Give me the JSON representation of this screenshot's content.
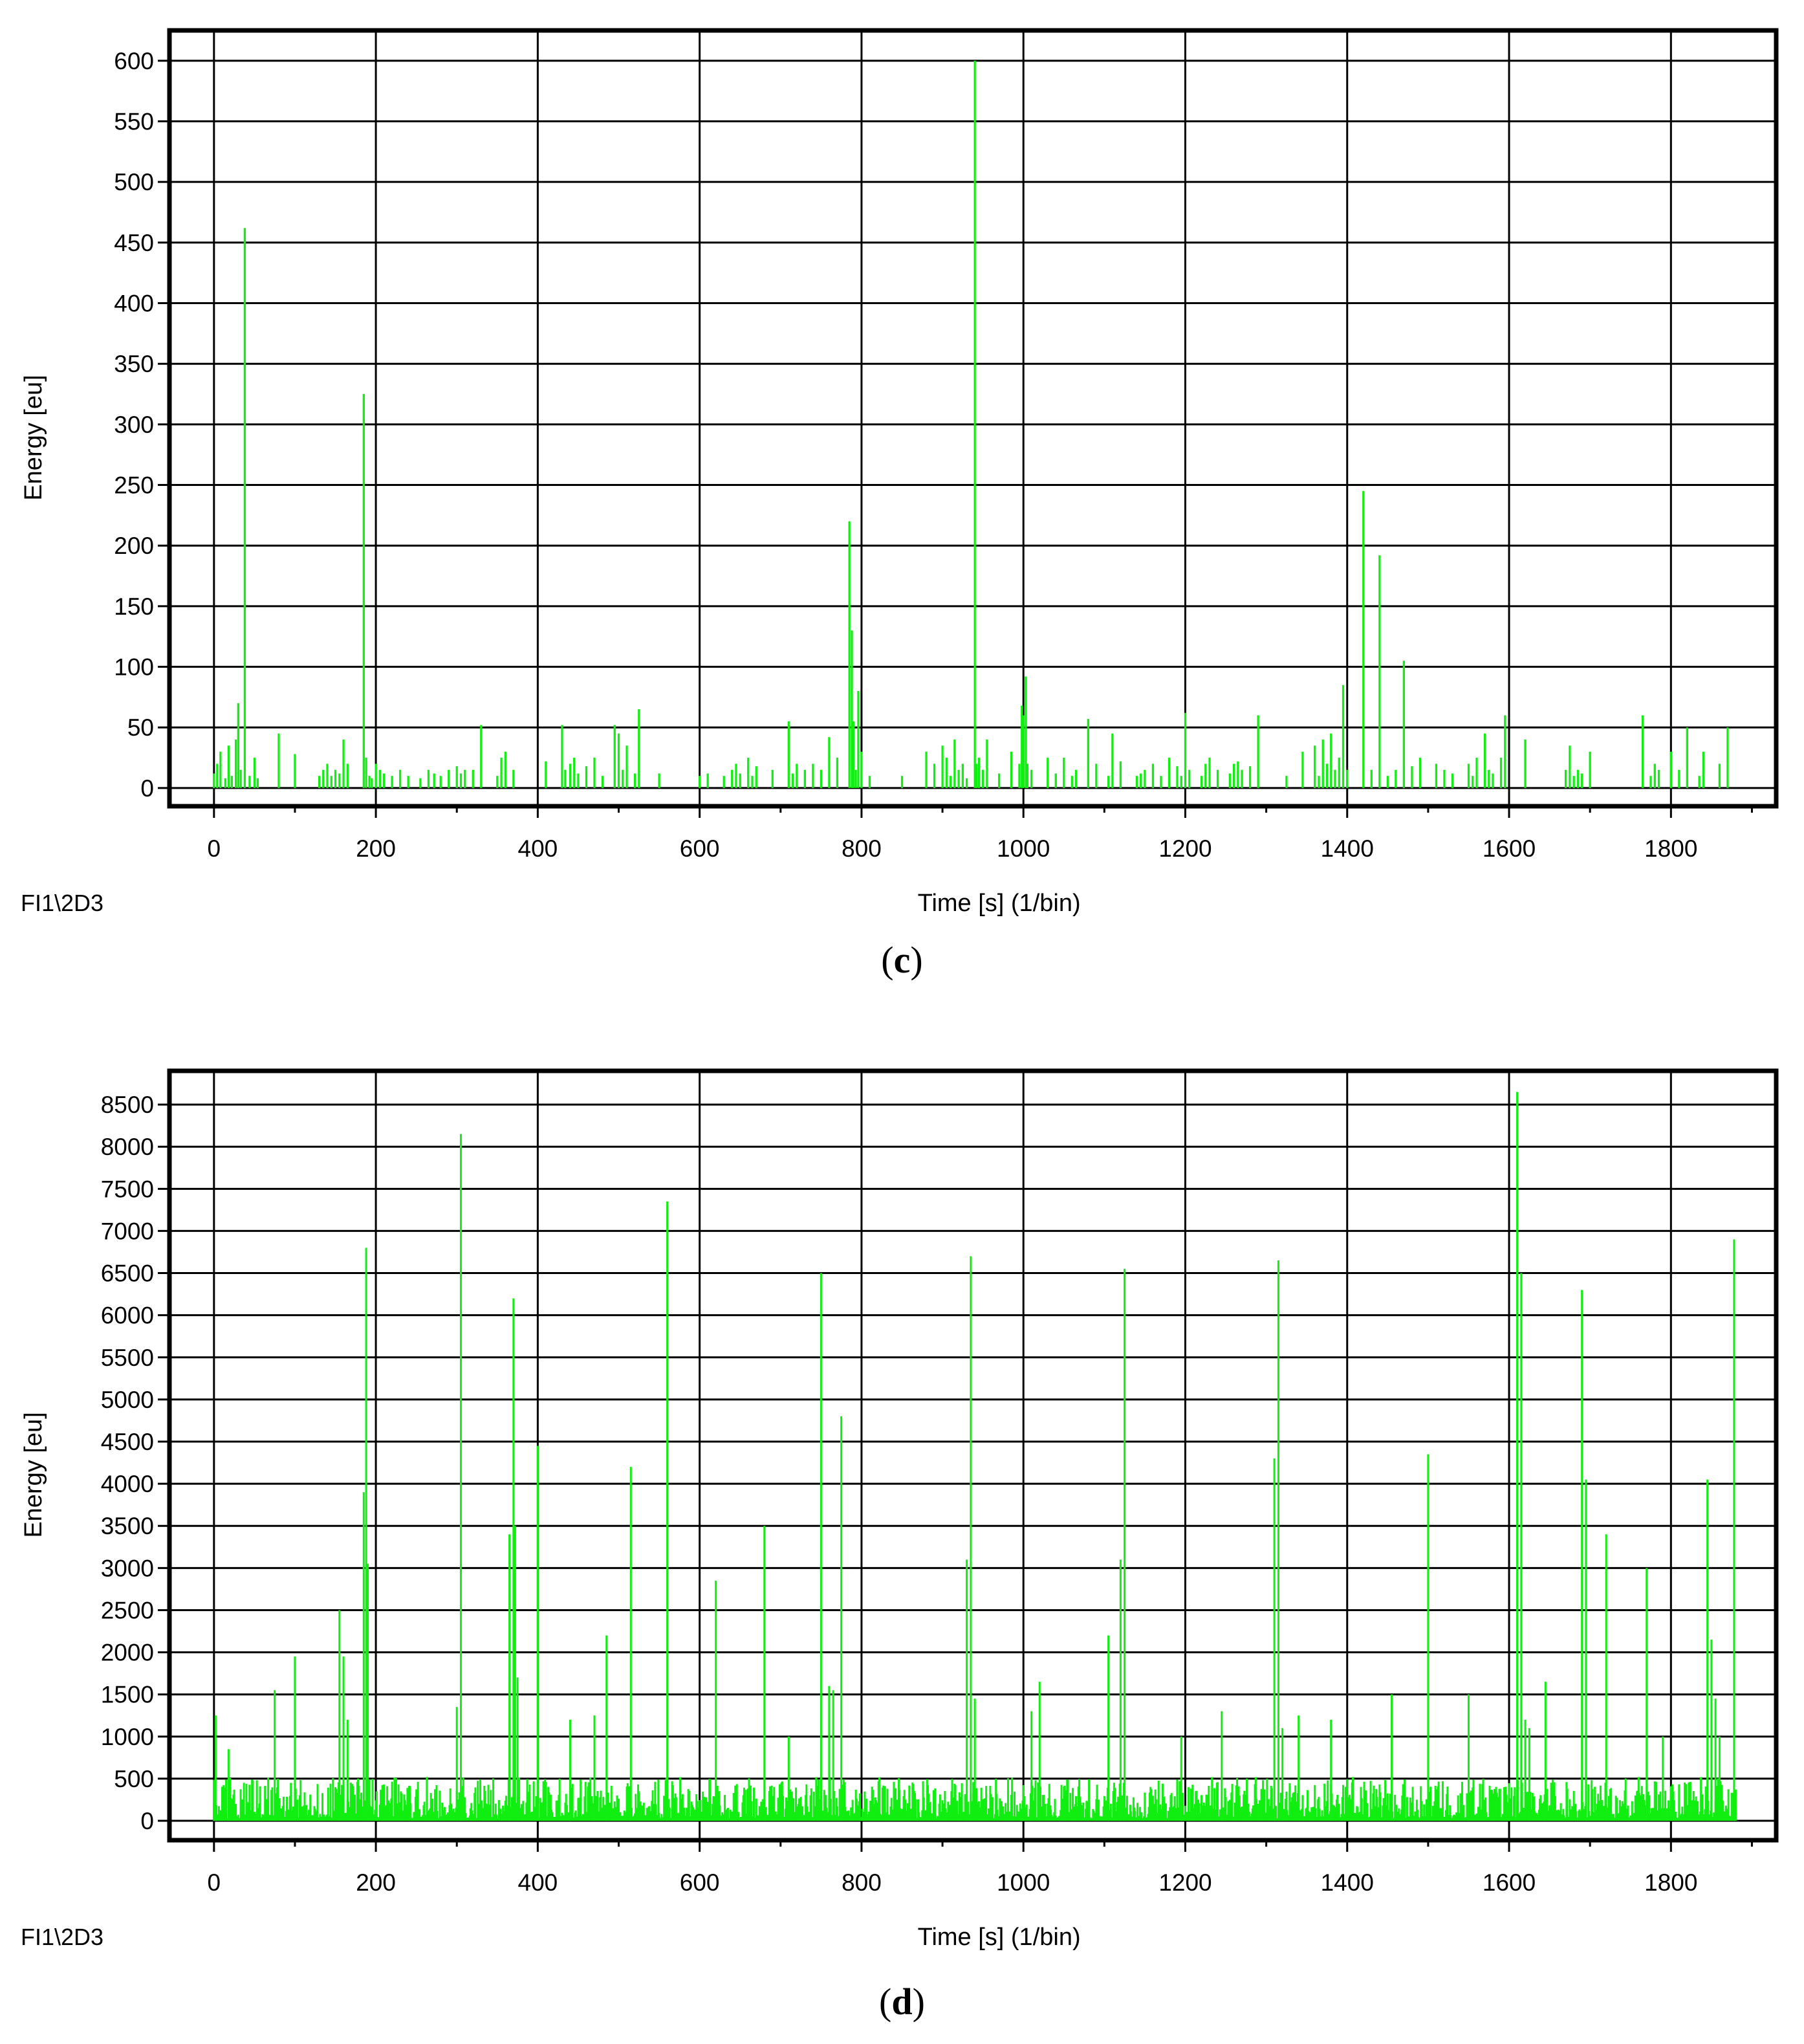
{
  "colors": {
    "bar": "#11ee11",
    "grid": "#000000",
    "frame": "#000000"
  },
  "chart_data": [
    {
      "type": "bar",
      "panel": "c",
      "caption_letter": "c",
      "source_label": "FI1\\2D3",
      "xlabel": "Time [s] (1/bin)",
      "ylabel": "Energy [eu]",
      "xlim": [
        -55,
        1930
      ],
      "ylim": [
        -15,
        625
      ],
      "x_ticks": [
        0,
        200,
        400,
        600,
        800,
        1000,
        1200,
        1400,
        1600,
        1800
      ],
      "y_ticks": [
        0,
        50,
        100,
        150,
        200,
        250,
        300,
        350,
        400,
        450,
        500,
        550,
        600
      ],
      "grid": true,
      "bar_width": 2.6,
      "x": [
        0,
        4,
        8,
        14,
        18,
        22,
        27,
        30,
        33,
        38,
        44,
        50,
        54,
        80,
        100,
        130,
        135,
        140,
        145,
        150,
        155,
        160,
        165,
        185,
        188,
        192,
        195,
        200,
        205,
        210,
        220,
        230,
        240,
        255,
        265,
        272,
        280,
        290,
        300,
        305,
        310,
        320,
        330,
        350,
        355,
        360,
        370,
        410,
        430,
        434,
        440,
        445,
        450,
        460,
        470,
        480,
        495,
        500,
        505,
        510,
        520,
        525,
        550,
        600,
        610,
        630,
        640,
        645,
        650,
        660,
        665,
        670,
        690,
        710,
        715,
        720,
        730,
        740,
        750,
        760,
        770,
        785,
        788,
        790,
        793,
        796,
        800,
        810,
        850,
        880,
        890,
        900,
        905,
        910,
        915,
        920,
        925,
        930,
        940,
        942,
        945,
        950,
        955,
        970,
        985,
        995,
        998,
        1000,
        1003,
        1005,
        1010,
        1030,
        1040,
        1050,
        1060,
        1065,
        1080,
        1090,
        1105,
        1110,
        1120,
        1140,
        1145,
        1150,
        1160,
        1170,
        1180,
        1190,
        1195,
        1200,
        1205,
        1220,
        1225,
        1230,
        1240,
        1255,
        1260,
        1265,
        1270,
        1280,
        1290,
        1325,
        1345,
        1360,
        1365,
        1370,
        1375,
        1380,
        1385,
        1390,
        1395,
        1400,
        1420,
        1430,
        1440,
        1450,
        1460,
        1470,
        1480,
        1490,
        1510,
        1520,
        1530,
        1550,
        1555,
        1560,
        1570,
        1575,
        1580,
        1590,
        1595,
        1620,
        1670,
        1675,
        1680,
        1685,
        1690,
        1700,
        1765,
        1775,
        1780,
        1785,
        1800,
        1810,
        1820,
        1835,
        1840,
        1860,
        1870
      ],
      "values": [
        12,
        20,
        30,
        8,
        35,
        10,
        40,
        70,
        15,
        462,
        10,
        25,
        8,
        45,
        28,
        10,
        15,
        20,
        10,
        15,
        12,
        40,
        20,
        325,
        25,
        10,
        8,
        20,
        15,
        12,
        10,
        15,
        10,
        8,
        15,
        12,
        10,
        15,
        18,
        12,
        15,
        15,
        52,
        10,
        25,
        30,
        15,
        22,
        52,
        15,
        20,
        25,
        12,
        18,
        25,
        10,
        52,
        45,
        15,
        35,
        12,
        65,
        12,
        10,
        12,
        10,
        15,
        20,
        12,
        25,
        10,
        18,
        15,
        55,
        12,
        20,
        15,
        20,
        15,
        42,
        25,
        220,
        130,
        55,
        15,
        80,
        30,
        10,
        10,
        30,
        20,
        35,
        25,
        10,
        40,
        15,
        20,
        8,
        600,
        20,
        25,
        15,
        40,
        12,
        30,
        20,
        68,
        60,
        92,
        20,
        15,
        25,
        12,
        25,
        10,
        15,
        57,
        20,
        10,
        45,
        22,
        10,
        12,
        15,
        20,
        10,
        25,
        18,
        10,
        62,
        15,
        10,
        20,
        25,
        15,
        12,
        20,
        22,
        15,
        18,
        60,
        10,
        30,
        35,
        10,
        40,
        20,
        45,
        15,
        25,
        85,
        15,
        245,
        15,
        192,
        10,
        15,
        105,
        18,
        25,
        20,
        15,
        12,
        20,
        10,
        25,
        45,
        15,
        12,
        25,
        60,
        40,
        15,
        35,
        10,
        15,
        12,
        30,
        60,
        10,
        20,
        15,
        30,
        15,
        50,
        10,
        30,
        20,
        50
      ],
      "c_spikes_note": ""
    },
    {
      "type": "bar",
      "panel": "d",
      "caption_letter": "d",
      "source_label": "FI1\\2D3",
      "xlabel": "Time [s] (1/bin)",
      "ylabel": "Energy [eu]",
      "xlim": [
        -55,
        1930
      ],
      "ylim": [
        -230,
        8900
      ],
      "x_ticks": [
        0,
        200,
        400,
        600,
        800,
        1000,
        1200,
        1400,
        1600,
        1800
      ],
      "y_ticks": [
        0,
        500,
        1000,
        1500,
        2000,
        2500,
        3000,
        3500,
        4000,
        4500,
        5000,
        5500,
        6000,
        6500,
        7000,
        7500,
        8000,
        8500
      ],
      "grid": true,
      "bar_width": 2.4,
      "background_seed": 1889,
      "background_range": [
        30,
        520
      ],
      "background_xmax": 1880,
      "peaks_x": [
        2,
        18,
        75,
        100,
        155,
        160,
        165,
        185,
        188,
        190,
        300,
        305,
        365,
        370,
        372,
        375,
        400,
        440,
        470,
        485,
        515,
        560,
        620,
        680,
        710,
        750,
        760,
        765,
        775,
        930,
        935,
        940,
        1010,
        1020,
        1105,
        1120,
        1125,
        1195,
        1245,
        1310,
        1315,
        1320,
        1340,
        1380,
        1455,
        1500,
        1550,
        1610,
        1615,
        1620,
        1625,
        1645,
        1690,
        1695,
        1720,
        1770,
        1790,
        1845,
        1850,
        1855,
        1860,
        1878
      ],
      "peaks_values": [
        1250,
        850,
        1550,
        1950,
        2500,
        1950,
        1200,
        3900,
        6800,
        3050,
        1350,
        8150,
        3400,
        6200,
        3500,
        1700,
        4450,
        1200,
        1250,
        2200,
        4200,
        7350,
        2850,
        3500,
        1000,
        6500,
        1600,
        1550,
        4800,
        3100,
        6700,
        1450,
        1300,
        1650,
        2200,
        3100,
        6550,
        1000,
        1300,
        4300,
        6650,
        1100,
        1250,
        1200,
        1500,
        4350,
        1500,
        8650,
        6500,
        1200,
        1100,
        1650,
        6300,
        4050,
        3400,
        3000,
        1000,
        4050,
        2150,
        1450,
        1000,
        6900
      ]
    }
  ]
}
